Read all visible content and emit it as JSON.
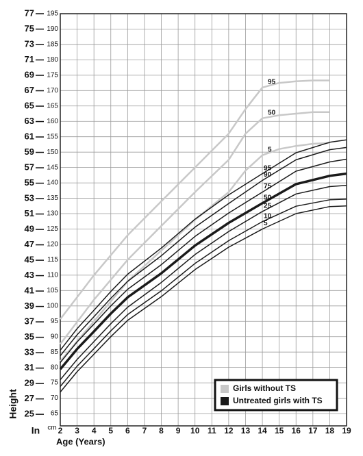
{
  "chart_data": {
    "type": "line",
    "ylabel": "Height",
    "y_unit": "cm",
    "y2_unit": "In",
    "xlabel": "Age (Years)",
    "xlim": [
      2,
      19
    ],
    "xticks": [
      2,
      3,
      4,
      5,
      6,
      7,
      8,
      9,
      10,
      11,
      12,
      13,
      14,
      15,
      16,
      17,
      18,
      19
    ],
    "ylim": [
      61,
      195
    ],
    "yticks": [
      65,
      70,
      75,
      80,
      85,
      90,
      95,
      100,
      105,
      110,
      115,
      120,
      125,
      130,
      135,
      140,
      145,
      150,
      155,
      160,
      165,
      170,
      175,
      180,
      185,
      190,
      195
    ],
    "y2lim": [
      23.5,
      77
    ],
    "y2ticks": [
      25,
      27,
      29,
      31,
      33,
      35,
      37,
      39,
      41,
      43,
      45,
      47,
      49,
      51,
      53,
      55,
      57,
      59,
      61,
      63,
      65,
      67,
      69,
      71,
      73,
      75,
      77
    ],
    "grid": true,
    "legend_position": "lower right",
    "legend": [
      {
        "name": "Girls without TS",
        "color": "#c8c8c8"
      },
      {
        "name": "Untreated girls with TS",
        "color": "#1a1a1a"
      }
    ],
    "series": [
      {
        "name": "95",
        "group": 0,
        "x": [
          2,
          4,
          6,
          8,
          10,
          12,
          13,
          14,
          15,
          16,
          17,
          18
        ],
        "values": [
          95.7,
          110,
          123,
          134,
          145,
          156,
          164,
          171,
          172.5,
          173,
          173.3,
          173.3
        ]
      },
      {
        "name": "50",
        "group": 0,
        "x": [
          2,
          4,
          6,
          8,
          10,
          12,
          13,
          14,
          15,
          16,
          17,
          18
        ],
        "values": [
          87.6,
          102,
          115,
          126,
          137,
          147.5,
          156,
          161,
          162,
          162.5,
          163,
          163
        ]
      },
      {
        "name": "5",
        "group": 0,
        "x": [
          2,
          4,
          6,
          8,
          10,
          12,
          13,
          14,
          15,
          16,
          17,
          18
        ],
        "values": [
          82,
          95,
          108,
          118,
          128,
          137,
          144,
          149,
          151,
          152,
          152.7,
          153
        ]
      },
      {
        "name": "95",
        "group": 1,
        "x": [
          2,
          3,
          4,
          5,
          6,
          8,
          10,
          12,
          14,
          16,
          18,
          19
        ],
        "values": [
          85.6,
          92.6,
          98.6,
          104.7,
          110.3,
          118.8,
          128.2,
          136.1,
          143,
          149.8,
          153.2,
          154
        ]
      },
      {
        "name": "90",
        "group": 1,
        "x": [
          2,
          3,
          4,
          5,
          6,
          8,
          10,
          12,
          14,
          16,
          18,
          19
        ],
        "values": [
          83.8,
          90.6,
          96.5,
          102.5,
          108,
          116.3,
          125.6,
          133.3,
          140.8,
          147.5,
          150.8,
          151.5
        ]
      },
      {
        "name": "75",
        "group": 1,
        "x": [
          2,
          3,
          4,
          5,
          6,
          8,
          10,
          12,
          14,
          16,
          18,
          19
        ],
        "values": [
          81.6,
          88.3,
          94.1,
          100,
          105.4,
          113.4,
          122.6,
          130.2,
          137,
          143.8,
          146.8,
          147.7
        ]
      },
      {
        "name": "50",
        "group": 1,
        "width": 3.5,
        "x": [
          2,
          3,
          4,
          5,
          6,
          8,
          10,
          12,
          14,
          16,
          18,
          19
        ],
        "values": [
          79.4,
          86,
          91.7,
          97.5,
          102.8,
          110.6,
          119.6,
          127,
          133.4,
          139.6,
          142.3,
          143
        ]
      },
      {
        "name": "25",
        "group": 1,
        "x": [
          2,
          3,
          4,
          5,
          6,
          8,
          10,
          12,
          14,
          16,
          18,
          19
        ],
        "values": [
          76,
          82.6,
          88.4,
          94.2,
          99.6,
          107.6,
          116.7,
          124.2,
          130.7,
          136.4,
          138.8,
          139.2
        ]
      },
      {
        "name": "10",
        "group": 1,
        "x": [
          2,
          3,
          4,
          5,
          6,
          8,
          10,
          12,
          14,
          16,
          18,
          19
        ],
        "values": [
          73.8,
          80.4,
          86.1,
          91.9,
          97.2,
          104.9,
          113.8,
          121.2,
          127.4,
          132.4,
          134.5,
          134.7
        ]
      },
      {
        "name": "5",
        "group": 1,
        "x": [
          2,
          3,
          4,
          5,
          6,
          8,
          10,
          12,
          14,
          16,
          18,
          19
        ],
        "values": [
          72,
          78.6,
          84.3,
          90,
          95.3,
          103,
          111.8,
          119.1,
          125,
          130,
          132.3,
          132.5
        ]
      }
    ]
  }
}
